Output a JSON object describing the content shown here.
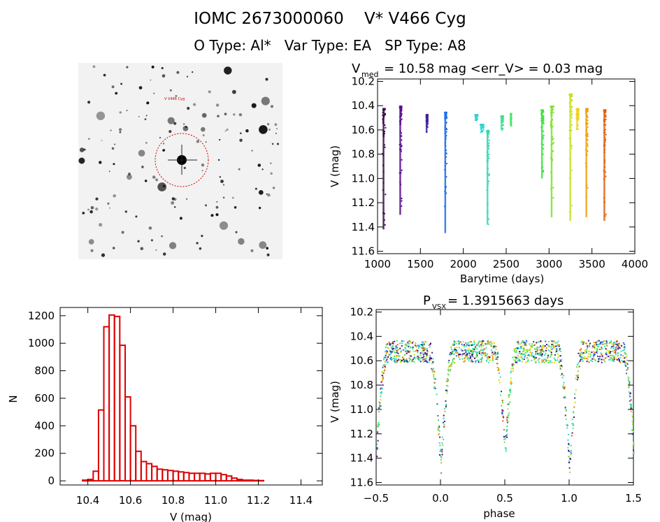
{
  "header": {
    "title": "IOMC 2673000060    V* V466 Cyg",
    "subtitle": "O Type: Al*   Var Type: EA   SP Type: A8"
  },
  "finder": {
    "label_target": "V V466 Cyg",
    "circle_color": "#cc0000"
  },
  "chart_data": [
    {
      "id": "lightcurve",
      "type": "scatter",
      "title": "V_med = 10.58 mag <err_V> = 0.03 mag",
      "title_parts": {
        "v": "V",
        "sub": "med",
        "rest": " = 10.58 mag <err_V> = 0.03 mag"
      },
      "xlabel": "Barytime (days)",
      "ylabel": "V (mag)",
      "xlim": [
        1000,
        4000
      ],
      "ylim": [
        11.62,
        10.18
      ],
      "xticks": [
        1000,
        1500,
        2000,
        2500,
        3000,
        3500,
        4000
      ],
      "yticks": [
        10.2,
        10.4,
        10.6,
        10.8,
        11.0,
        11.2,
        11.4,
        11.6
      ],
      "ytick_labels": [
        "10.2",
        "10.4",
        "10.6",
        "10.8",
        "11.0",
        "11.2",
        "11.4",
        "11.6"
      ],
      "series": [
        {
          "x": [
            1050,
            1085
          ],
          "ymin": 10.42,
          "ymax": 11.42,
          "color": "#3a0a4a"
        },
        {
          "x": [
            1250,
            1275
          ],
          "ymin": 10.4,
          "ymax": 11.3,
          "color": "#5a0f8a"
        },
        {
          "x": [
            1560,
            1580
          ],
          "ymin": 10.47,
          "ymax": 10.62,
          "color": "#3d1f9a"
        },
        {
          "x": [
            1775,
            1800
          ],
          "ymin": 10.45,
          "ymax": 11.45,
          "color": "#1e6ee6"
        },
        {
          "x": [
            2130,
            2160
          ],
          "ymin": 10.47,
          "ymax": 10.52,
          "color": "#30d0d8"
        },
        {
          "x": [
            2190,
            2230
          ],
          "ymin": 10.55,
          "ymax": 10.62,
          "color": "#30d8d0"
        },
        {
          "x": [
            2265,
            2295
          ],
          "ymin": 10.6,
          "ymax": 11.38,
          "color": "#38d8b0"
        },
        {
          "x": [
            2430,
            2460
          ],
          "ymin": 10.48,
          "ymax": 10.6,
          "color": "#40e090"
        },
        {
          "x": [
            2545,
            2555
          ],
          "ymin": 10.46,
          "ymax": 10.56,
          "color": "#50e070"
        },
        {
          "x": [
            2900,
            2930
          ],
          "ymin": 10.43,
          "ymax": 11.0,
          "color": "#40e040"
        },
        {
          "x": [
            3010,
            3045
          ],
          "ymin": 10.4,
          "ymax": 11.32,
          "color": "#80e030"
        },
        {
          "x": [
            3230,
            3260
          ],
          "ymin": 10.3,
          "ymax": 11.35,
          "color": "#c8e020"
        },
        {
          "x": [
            3310,
            3340
          ],
          "ymin": 10.42,
          "ymax": 10.6,
          "color": "#f0d020"
        },
        {
          "x": [
            3420,
            3445
          ],
          "ymin": 10.42,
          "ymax": 11.32,
          "color": "#f0a010"
        },
        {
          "x": [
            3630,
            3655
          ],
          "ymin": 10.43,
          "ymax": 11.35,
          "color": "#e06010"
        }
      ]
    },
    {
      "id": "histogram",
      "type": "bar",
      "title": "",
      "xlabel": "V (mag)",
      "ylabel": "N",
      "xlim": [
        10.27,
        11.5
      ],
      "ylim": [
        -30,
        1260
      ],
      "xticks": [
        10.4,
        10.6,
        10.8,
        11.0,
        11.2,
        11.4
      ],
      "xtick_labels": [
        "10.4",
        "10.6",
        "10.8",
        "11.0",
        "11.2",
        "11.4"
      ],
      "yticks": [
        0,
        200,
        400,
        600,
        800,
        1000,
        1200
      ],
      "bin_width": 0.025,
      "bin_start": 10.275,
      "values": [
        0,
        0,
        0,
        0,
        5,
        10,
        70,
        515,
        1120,
        1205,
        1195,
        985,
        610,
        400,
        215,
        140,
        125,
        105,
        85,
        80,
        75,
        70,
        65,
        60,
        55,
        55,
        55,
        50,
        55,
        55,
        45,
        35,
        20,
        10,
        5,
        5,
        3,
        2
      ],
      "color": "#dd0000"
    },
    {
      "id": "phased",
      "type": "scatter",
      "title": "P_vsx = 1.3915663 days",
      "title_parts": {
        "p": "P",
        "sub": "VSX",
        "rest": " = 1.3915663 days"
      },
      "xlabel": "phase",
      "ylabel": "V (mag)",
      "xlim": [
        -0.5,
        1.5
      ],
      "ylim": [
        11.62,
        10.18
      ],
      "xticks": [
        -0.5,
        0.0,
        0.5,
        1.0,
        1.5
      ],
      "xtick_labels": [
        "−0.5",
        "0.0",
        "0.5",
        "1.0",
        "1.5"
      ],
      "yticks": [
        10.2,
        10.4,
        10.6,
        10.8,
        11.0,
        11.2,
        11.4,
        11.6
      ],
      "ytick_labels": [
        "10.2",
        "10.4",
        "10.6",
        "10.8",
        "11.0",
        "11.2",
        "11.4",
        "11.6"
      ],
      "period_days": 1.3915663,
      "primary_min_mag": 11.45,
      "secondary_min_mag": 11.32,
      "max_mag": 10.52
    }
  ]
}
